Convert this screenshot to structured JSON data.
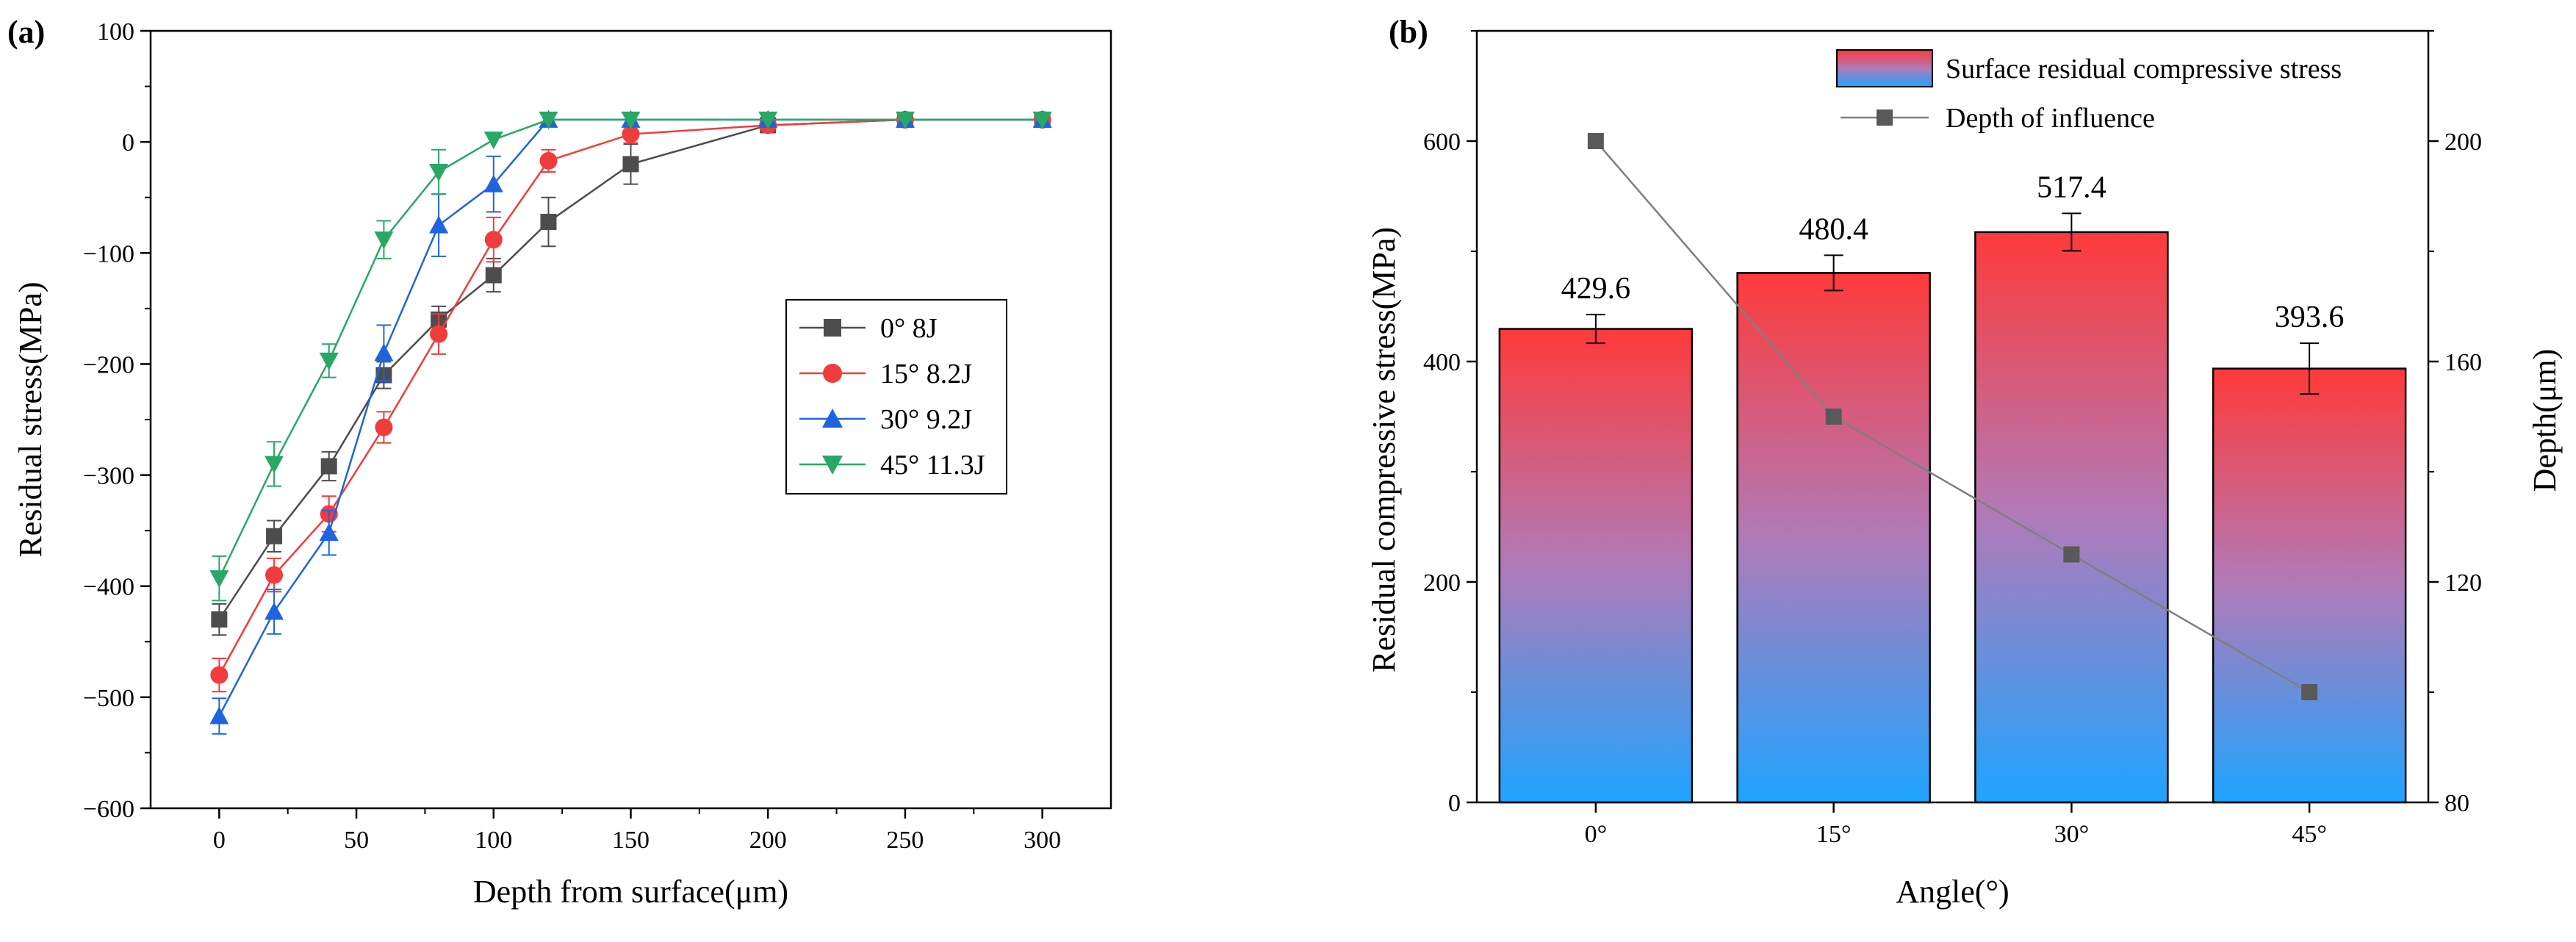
{
  "chart_data": [
    {
      "panel": "(a)",
      "type": "line",
      "xlabel": "Depth from surface(μm)",
      "ylabel": "Residual stress(MPa)",
      "xlim": [
        -25,
        325
      ],
      "ylim": [
        -600,
        100
      ],
      "xticks": [
        0,
        50,
        100,
        150,
        200,
        250,
        300
      ],
      "yticks": [
        -600,
        -500,
        -400,
        -300,
        -200,
        -100,
        0,
        100
      ],
      "ytick_labels": [
        "−600",
        "−500",
        "−400",
        "−300",
        "−200",
        "−100",
        "0",
        "100"
      ],
      "x": [
        0,
        20,
        40,
        60,
        80,
        100,
        120,
        150,
        200,
        250,
        300
      ],
      "legend_position": "center-right",
      "series": [
        {
          "name": "0°   8J",
          "color": "#4d4d4d",
          "marker": "square",
          "values": [
            -430,
            -355,
            -292,
            -210,
            -160,
            -120,
            -72,
            -20,
            15,
            20,
            20
          ],
          "errors": [
            14,
            14,
            13,
            12,
            12,
            15,
            22,
            18,
            0,
            0,
            0
          ]
        },
        {
          "name": "15° 8.2J",
          "color": "#f03c3c",
          "marker": "circle",
          "values": [
            -480,
            -390,
            -335,
            -257,
            -173,
            -88,
            -17,
            7,
            15,
            20,
            20
          ],
          "errors": [
            15,
            15,
            16,
            14,
            18,
            20,
            10,
            8,
            0,
            0,
            0
          ]
        },
        {
          "name": "30° 9.2J",
          "color": "#1f64dc",
          "marker": "triangle-up",
          "values": [
            -517,
            -423,
            -352,
            -190,
            -75,
            -38,
            20,
            20,
            20,
            20,
            20
          ],
          "errors": [
            16,
            20,
            20,
            25,
            28,
            25,
            0,
            0,
            0,
            0,
            0
          ]
        },
        {
          "name": "45° 11.3J",
          "color": "#28a864",
          "marker": "triangle-down",
          "values": [
            -393,
            -290,
            -197,
            -88,
            -27,
            2,
            20,
            20,
            20,
            20,
            20
          ],
          "errors": [
            20,
            20,
            15,
            17,
            20,
            0,
            0,
            0,
            0,
            0,
            0
          ]
        }
      ]
    },
    {
      "panel": "(b)",
      "type": "bar",
      "xlabel": "Angle(°)",
      "ylabel": "Residual compressive stress(MPa)",
      "y2label": "Depth(μm)",
      "categories": [
        "0°",
        "15°",
        "30°",
        "45°"
      ],
      "ylim": [
        0,
        700
      ],
      "yticks": [
        0,
        200,
        400,
        600
      ],
      "y2lim": [
        80,
        220
      ],
      "y2ticks": [
        80,
        120,
        160,
        200
      ],
      "legend_position": "top-right",
      "bar_series": {
        "name": "Surface residual compressive stress",
        "values": [
          429.6,
          480.4,
          517.4,
          393.6
        ],
        "value_labels": [
          "429.6",
          "480.4",
          "517.4",
          "393.6"
        ],
        "errors": [
          13,
          16,
          17,
          23
        ],
        "gradient_top": "#ff3a3a",
        "gradient_bottom": "#1ea4ff"
      },
      "line_series": {
        "name": "Depth of influence",
        "values": [
          200,
          150,
          125,
          100
        ],
        "color": "#595959",
        "marker": "square"
      }
    }
  ]
}
